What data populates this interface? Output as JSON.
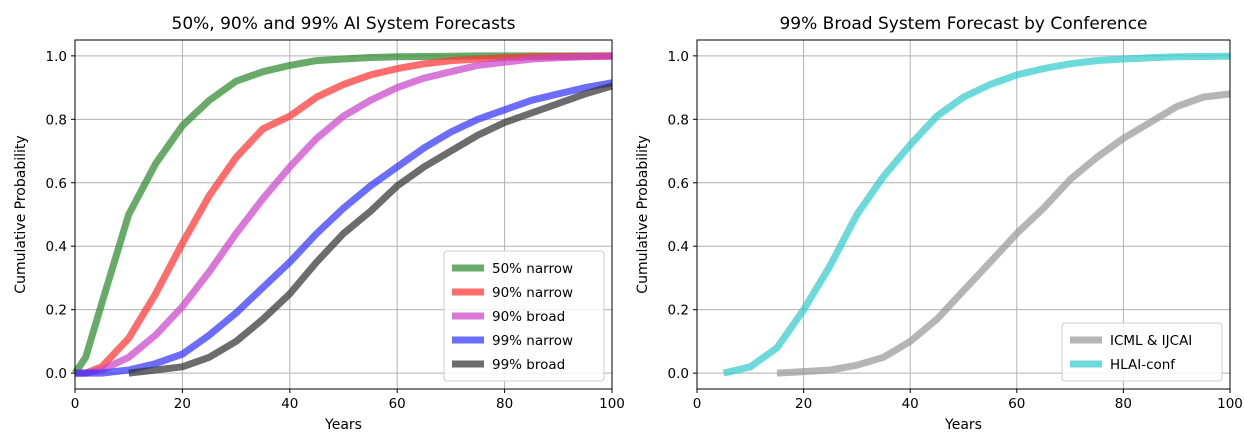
{
  "chart_data": [
    {
      "type": "line",
      "title": "50%, 90% and 99% AI System Forecasts",
      "xlabel": "Years",
      "ylabel": "Cumulative Probability",
      "xlim": [
        0,
        100
      ],
      "ylim": [
        -0.05,
        1.05
      ],
      "xticks": [
        "0",
        "20",
        "40",
        "60",
        "80",
        "100"
      ],
      "yticks": [
        "0.0",
        "0.2",
        "0.4",
        "0.6",
        "0.8",
        "1.0"
      ],
      "grid": true,
      "legend_position": "lower-right",
      "x": [
        0,
        2,
        5,
        10,
        15,
        20,
        25,
        30,
        35,
        40,
        45,
        50,
        55,
        60,
        65,
        70,
        75,
        80,
        85,
        90,
        95,
        100
      ],
      "series": [
        {
          "name": "50% narrow",
          "color": "#2e8b2e",
          "values": [
            0.0,
            0.05,
            0.22,
            0.5,
            0.66,
            0.78,
            0.86,
            0.92,
            0.95,
            0.97,
            0.985,
            0.99,
            0.995,
            0.997,
            0.998,
            0.999,
            1.0,
            1.0,
            1.0,
            1.0,
            1.0,
            1.0
          ]
        },
        {
          "name": "90% narrow",
          "color": "#ff3333",
          "values": [
            0.0,
            0.0,
            0.02,
            0.11,
            0.25,
            0.41,
            0.56,
            0.68,
            0.77,
            0.81,
            0.87,
            0.91,
            0.94,
            0.96,
            0.975,
            0.985,
            0.99,
            0.994,
            0.997,
            0.998,
            0.999,
            1.0
          ]
        },
        {
          "name": "90% broad",
          "color": "#cc44cc",
          "values": [
            0.0,
            0.0,
            0.01,
            0.05,
            0.12,
            0.21,
            0.32,
            0.44,
            0.55,
            0.65,
            0.74,
            0.81,
            0.86,
            0.9,
            0.93,
            0.95,
            0.97,
            0.98,
            0.99,
            0.994,
            0.997,
            0.999
          ]
        },
        {
          "name": "99% narrow",
          "color": "#3333ff",
          "values": [
            0.0,
            0.0,
            0.0,
            0.01,
            0.03,
            0.06,
            0.12,
            0.19,
            0.27,
            0.35,
            0.44,
            0.52,
            0.59,
            0.65,
            0.71,
            0.76,
            0.8,
            0.83,
            0.86,
            0.88,
            0.9,
            0.915
          ]
        },
        {
          "name": "99% broad",
          "color": "#333333",
          "values": [
            null,
            null,
            null,
            0.0,
            0.01,
            0.02,
            0.05,
            0.1,
            0.17,
            0.25,
            0.35,
            0.44,
            0.51,
            0.59,
            0.65,
            0.7,
            0.75,
            0.79,
            0.82,
            0.85,
            0.88,
            0.905
          ]
        }
      ]
    },
    {
      "type": "line",
      "title": "99% Broad System Forecast by Conference",
      "xlabel": "Years",
      "ylabel": "Cumulative Probability",
      "xlim": [
        0,
        100
      ],
      "ylim": [
        -0.05,
        1.05
      ],
      "xticks": [
        "0",
        "20",
        "40",
        "60",
        "80",
        "100"
      ],
      "yticks": [
        "0.0",
        "0.2",
        "0.4",
        "0.6",
        "0.8",
        "1.0"
      ],
      "grid": true,
      "legend_position": "lower-right",
      "x": [
        5,
        10,
        15,
        20,
        25,
        30,
        35,
        40,
        45,
        50,
        55,
        60,
        65,
        70,
        75,
        80,
        85,
        90,
        95,
        100
      ],
      "series": [
        {
          "name": "ICML & IJCAI",
          "color": "#999999",
          "values": [
            null,
            null,
            0.0,
            0.005,
            0.01,
            0.025,
            0.05,
            0.1,
            0.17,
            0.26,
            0.35,
            0.44,
            0.52,
            0.61,
            0.68,
            0.74,
            0.79,
            0.84,
            0.87,
            0.88
          ]
        },
        {
          "name": "HLAI-conf",
          "color": "#33cccc",
          "values": [
            0.0,
            0.02,
            0.08,
            0.2,
            0.34,
            0.5,
            0.62,
            0.72,
            0.81,
            0.87,
            0.91,
            0.94,
            0.96,
            0.975,
            0.985,
            0.99,
            0.994,
            0.997,
            0.998,
            0.999
          ]
        }
      ]
    }
  ]
}
